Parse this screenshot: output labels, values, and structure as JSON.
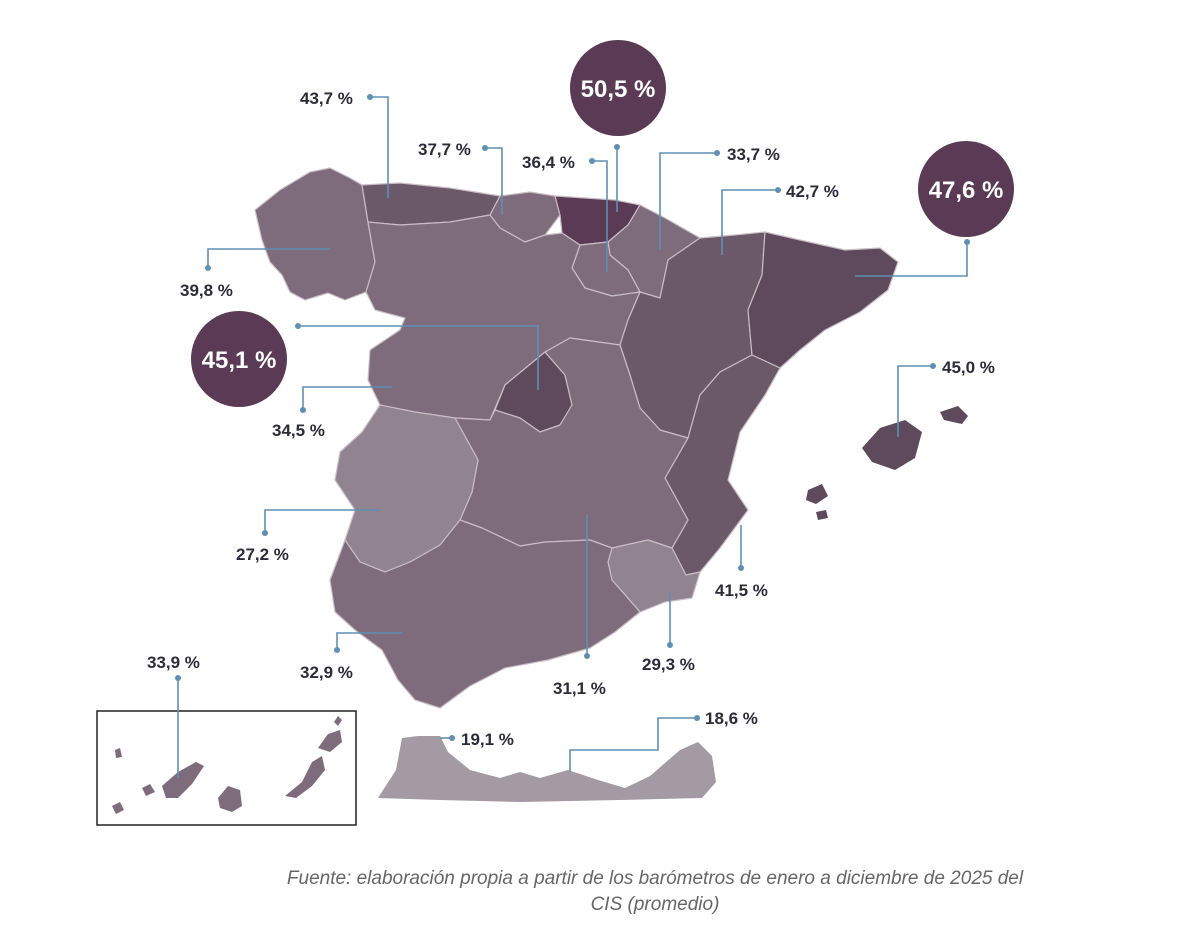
{
  "colors": {
    "very_light": "#a39aa3",
    "light": "#918490",
    "medium": "#7e6c7c",
    "dark": "#6b5869",
    "darker": "#5e4a5c",
    "darkest": "#5a3a54",
    "bubble": "#5a3a54",
    "leader": "#5f8fb3"
  },
  "regions": [
    {
      "name": "Asturias",
      "value": "43,7 %",
      "level": 43.7,
      "highlight": false
    },
    {
      "name": "Cantabria",
      "value": "37,7 %",
      "level": 37.7,
      "highlight": false
    },
    {
      "name": "Pais Vasco",
      "value": "50,5 %",
      "level": 50.5,
      "highlight": true
    },
    {
      "name": "La Rioja",
      "value": "36,4 %",
      "level": 36.4,
      "highlight": false
    },
    {
      "name": "Navarra",
      "value": "33,7 %",
      "level": 33.7,
      "highlight": false
    },
    {
      "name": "Aragon",
      "value": "42,7 %",
      "level": 42.7,
      "highlight": false
    },
    {
      "name": "Cataluna",
      "value": "47,6 %",
      "level": 47.6,
      "highlight": true
    },
    {
      "name": "Galicia",
      "value": "39,8 %",
      "level": 39.8,
      "highlight": false
    },
    {
      "name": "Madrid",
      "value": "45,1 %",
      "level": 45.1,
      "highlight": true
    },
    {
      "name": "Castilla y Leon",
      "value": "34,5 %",
      "level": 34.5,
      "highlight": false
    },
    {
      "name": "Baleares",
      "value": "45,0 %",
      "level": 45.0,
      "highlight": false
    },
    {
      "name": "Extremadura",
      "value": "27,2 %",
      "level": 27.2,
      "highlight": false
    },
    {
      "name": "Comunidad Valenciana",
      "value": "41,5 %",
      "level": 41.5,
      "highlight": false
    },
    {
      "name": "Murcia",
      "value": "29,3 %",
      "level": 29.3,
      "highlight": false
    },
    {
      "name": "Andalucia",
      "value": "32,9 %",
      "level": 32.9,
      "highlight": false
    },
    {
      "name": "Castilla-La Mancha",
      "value": "31,1 %",
      "level": 31.1,
      "highlight": false
    },
    {
      "name": "Canarias",
      "value": "33,9 %",
      "level": 33.9,
      "highlight": false
    },
    {
      "name": "Ceuta",
      "value": "19,1 %",
      "level": 19.1,
      "highlight": false
    },
    {
      "name": "Melilla",
      "value": "18,6 %",
      "level": 18.6,
      "highlight": false
    }
  ],
  "source": {
    "line1": "Fuente: elaboración propia a partir de los barómetros de enero a diciembre de 2025 del",
    "line2": "CIS (promedio)"
  }
}
